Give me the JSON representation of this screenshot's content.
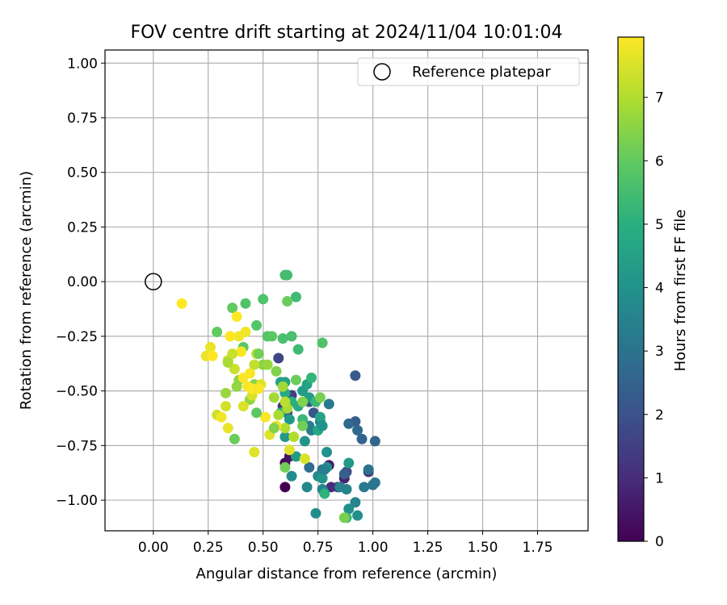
{
  "chart_data": {
    "type": "scatter",
    "title": "FOV centre drift starting at 2024/11/04 10:01:04",
    "xlabel": "Angular distance from reference (arcmin)",
    "ylabel": "Rotation from reference (arcmin)",
    "xlim": [
      -0.22,
      1.98
    ],
    "ylim": [
      -1.14,
      1.06
    ],
    "xticks": [
      0.0,
      0.25,
      0.5,
      0.75,
      1.0,
      1.25,
      1.5,
      1.75
    ],
    "xtick_labels": [
      "0.00",
      "0.25",
      "0.50",
      "0.75",
      "1.00",
      "1.25",
      "1.50",
      "1.75"
    ],
    "yticks": [
      1.0,
      0.75,
      0.5,
      0.25,
      0.0,
      -0.25,
      -0.5,
      -0.75,
      -1.0
    ],
    "ytick_labels": [
      "1.00",
      "0.75",
      "0.50",
      "0.25",
      "0.00",
      "−0.25",
      "−0.50",
      "−0.75",
      "−1.00"
    ],
    "grid": true,
    "legend": {
      "position": "upper right",
      "entries": [
        "Reference platepar"
      ]
    },
    "reference_point": {
      "x": 0.0,
      "y": 0.0
    },
    "colorbar": {
      "label": "Hours from first FF file",
      "range": [
        0,
        7.95
      ],
      "ticks": [
        0,
        1,
        2,
        3,
        4,
        5,
        6,
        7
      ],
      "tick_labels": [
        "0",
        "1",
        "2",
        "3",
        "4",
        "5",
        "6",
        "7"
      ],
      "colormap": "viridis"
    },
    "points": [
      [
        0.6,
        -0.94,
        0.0
      ],
      [
        0.6,
        -0.83,
        0.2
      ],
      [
        0.62,
        -0.8,
        0.4
      ],
      [
        0.8,
        -0.84,
        0.6
      ],
      [
        0.87,
        -0.9,
        0.8
      ],
      [
        0.81,
        -0.94,
        1.0
      ],
      [
        0.98,
        -0.87,
        1.1
      ],
      [
        0.84,
        -0.94,
        1.2
      ],
      [
        0.59,
        -0.57,
        1.3
      ],
      [
        0.63,
        -0.52,
        1.5
      ],
      [
        0.61,
        -0.6,
        1.6
      ],
      [
        0.57,
        -0.35,
        1.7
      ],
      [
        0.88,
        -0.87,
        1.8
      ],
      [
        0.71,
        -0.55,
        2.0
      ],
      [
        0.73,
        -0.6,
        2.1
      ],
      [
        0.92,
        -0.43,
        2.2
      ],
      [
        0.92,
        -0.64,
        2.3
      ],
      [
        0.87,
        -0.88,
        2.4
      ],
      [
        0.95,
        -0.72,
        2.5
      ],
      [
        1.01,
        -0.73,
        2.6
      ],
      [
        0.89,
        -0.65,
        2.7
      ],
      [
        0.93,
        -0.68,
        2.7
      ],
      [
        0.71,
        -0.85,
        2.8
      ],
      [
        0.77,
        -0.86,
        2.9
      ],
      [
        0.98,
        -0.86,
        3.0
      ],
      [
        1.0,
        -0.93,
        3.0
      ],
      [
        1.01,
        -0.92,
        3.1
      ],
      [
        0.96,
        -0.94,
        3.2
      ],
      [
        0.8,
        -0.56,
        3.2
      ],
      [
        0.76,
        -0.64,
        3.3
      ],
      [
        0.71,
        -0.66,
        3.3
      ],
      [
        0.72,
        -0.68,
        3.4
      ],
      [
        0.85,
        -0.94,
        3.5
      ],
      [
        0.88,
        -0.95,
        3.5
      ],
      [
        0.92,
        -1.01,
        3.6
      ],
      [
        0.77,
        -0.95,
        3.6
      ],
      [
        0.7,
        -0.94,
        3.7
      ],
      [
        0.75,
        -0.89,
        3.7
      ],
      [
        0.63,
        -0.89,
        3.8
      ],
      [
        0.74,
        -1.06,
        3.8
      ],
      [
        0.89,
        -1.04,
        3.9
      ],
      [
        0.93,
        -1.07,
        3.9
      ],
      [
        0.79,
        -0.85,
        4.0
      ],
      [
        0.79,
        -0.78,
        4.0
      ],
      [
        0.77,
        -0.9,
        4.1
      ],
      [
        0.69,
        -0.73,
        4.1
      ],
      [
        0.89,
        -0.83,
        4.2
      ],
      [
        0.6,
        -0.71,
        4.2
      ],
      [
        0.62,
        -0.63,
        4.3
      ],
      [
        0.65,
        -0.8,
        4.3
      ],
      [
        0.71,
        -0.53,
        4.4
      ],
      [
        0.68,
        -0.5,
        4.4
      ],
      [
        0.6,
        -0.46,
        4.5
      ],
      [
        0.58,
        -0.46,
        4.5
      ],
      [
        0.76,
        -0.62,
        4.6
      ],
      [
        0.7,
        -0.47,
        4.6
      ],
      [
        0.75,
        -0.68,
        4.7
      ],
      [
        0.6,
        -0.51,
        4.8
      ],
      [
        0.66,
        -0.57,
        4.8
      ],
      [
        0.58,
        -0.6,
        4.9
      ],
      [
        0.63,
        -0.55,
        5.0
      ],
      [
        0.78,
        -0.97,
        5.1
      ],
      [
        0.88,
        -1.08,
        5.2
      ],
      [
        0.72,
        -0.44,
        5.2
      ],
      [
        0.68,
        -0.63,
        5.3
      ],
      [
        0.74,
        -0.55,
        5.3
      ],
      [
        0.66,
        -0.31,
        5.4
      ],
      [
        0.65,
        -0.07,
        5.4
      ],
      [
        0.6,
        0.03,
        5.5
      ],
      [
        0.61,
        0.03,
        5.5
      ],
      [
        0.59,
        -0.26,
        5.6
      ],
      [
        0.63,
        -0.25,
        5.6
      ],
      [
        0.5,
        -0.08,
        5.7
      ],
      [
        0.42,
        -0.1,
        5.7
      ],
      [
        0.77,
        -0.28,
        5.7
      ],
      [
        0.47,
        -0.2,
        5.8
      ],
      [
        0.52,
        -0.25,
        5.8
      ],
      [
        0.54,
        -0.25,
        5.9
      ],
      [
        0.41,
        -0.3,
        5.9
      ],
      [
        0.29,
        -0.23,
        6.0
      ],
      [
        0.36,
        -0.12,
        6.0
      ],
      [
        0.61,
        -0.09,
        6.1
      ],
      [
        0.37,
        -0.72,
        6.1
      ],
      [
        0.6,
        -0.85,
        6.2
      ],
      [
        0.68,
        -0.66,
        6.2
      ],
      [
        0.87,
        -1.08,
        6.3
      ],
      [
        0.76,
        -0.53,
        6.3
      ],
      [
        0.68,
        -0.55,
        6.4
      ],
      [
        0.56,
        -0.41,
        6.4
      ],
      [
        0.5,
        -0.38,
        6.5
      ],
      [
        0.46,
        -0.47,
        6.5
      ],
      [
        0.44,
        -0.54,
        6.6
      ],
      [
        0.39,
        -0.45,
        6.6
      ],
      [
        0.33,
        -0.51,
        6.7
      ],
      [
        0.52,
        -0.38,
        6.7
      ],
      [
        0.59,
        -0.48,
        6.8
      ],
      [
        0.55,
        -0.53,
        6.8
      ],
      [
        0.57,
        -0.61,
        6.9
      ],
      [
        0.61,
        -0.58,
        6.9
      ],
      [
        0.6,
        -0.67,
        7.0
      ],
      [
        0.64,
        -0.71,
        7.0
      ],
      [
        0.6,
        -0.55,
        7.1
      ],
      [
        0.47,
        -0.33,
        7.2
      ],
      [
        0.46,
        -0.38,
        7.2
      ],
      [
        0.37,
        -0.4,
        7.3
      ],
      [
        0.34,
        -0.36,
        7.3
      ],
      [
        0.33,
        -0.57,
        7.4
      ],
      [
        0.29,
        -0.61,
        7.4
      ],
      [
        0.41,
        -0.57,
        7.5
      ],
      [
        0.45,
        -0.52,
        7.5
      ],
      [
        0.49,
        -0.47,
        7.6
      ],
      [
        0.53,
        -0.7,
        7.6
      ],
      [
        0.46,
        -0.78,
        7.6
      ],
      [
        0.26,
        -0.3,
        7.7
      ],
      [
        0.24,
        -0.34,
        7.7
      ],
      [
        0.34,
        -0.67,
        7.7
      ],
      [
        0.31,
        -0.62,
        7.8
      ],
      [
        0.39,
        -0.25,
        7.8
      ],
      [
        0.42,
        -0.23,
        7.8
      ],
      [
        0.44,
        -0.42,
        7.9
      ],
      [
        0.43,
        -0.48,
        7.9
      ],
      [
        0.41,
        -0.44,
        7.9
      ],
      [
        0.45,
        -0.49,
        7.95
      ],
      [
        0.4,
        -0.32,
        7.95
      ],
      [
        0.38,
        -0.16,
        7.95
      ],
      [
        0.35,
        -0.25,
        7.95
      ],
      [
        0.27,
        -0.34,
        7.95
      ],
      [
        0.13,
        -0.1,
        7.95
      ],
      [
        0.51,
        -0.62,
        7.9
      ],
      [
        0.48,
        -0.49,
        7.9
      ],
      [
        0.56,
        -0.66,
        7.8
      ],
      [
        0.62,
        -0.77,
        7.6
      ],
      [
        0.69,
        -0.81,
        7.5
      ],
      [
        0.36,
        -0.33,
        7.3
      ],
      [
        0.34,
        -0.37,
        6.9
      ],
      [
        0.38,
        -0.48,
        6.6
      ],
      [
        0.55,
        -0.67,
        6.4
      ],
      [
        0.48,
        -0.33,
        6.2
      ],
      [
        0.65,
        -0.45,
        6.1
      ],
      [
        0.47,
        -0.6,
        5.9
      ],
      [
        0.77,
        -0.66,
        4.0
      ],
      [
        0.78,
        -0.86,
        3.4
      ]
    ]
  }
}
